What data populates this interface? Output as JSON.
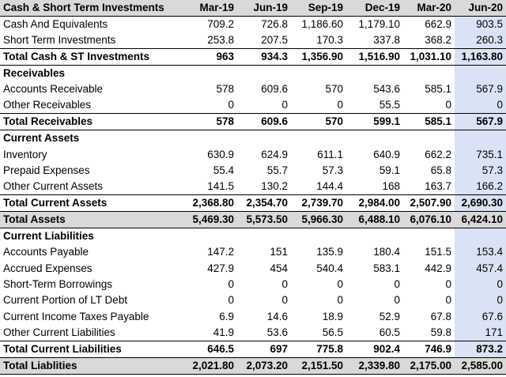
{
  "columns": [
    "Cash & Short Term Investments",
    "Mar-19",
    "Jun-19",
    "Sep-19",
    "Dec-19",
    "Mar-20",
    "Jun-20"
  ],
  "rows": [
    {
      "type": "data",
      "label": "Cash And Equivalents",
      "values": [
        "709.2",
        "726.8",
        "1,186.60",
        "1,179.10",
        "662.9",
        "903.5"
      ]
    },
    {
      "type": "data",
      "label": "Short Term Investments",
      "values": [
        "253.8",
        "207.5",
        "170.3",
        "337.8",
        "368.2",
        "260.3"
      ]
    },
    {
      "type": "total",
      "label": "Total Cash & ST Investments",
      "values": [
        "963",
        "934.3",
        "1,356.90",
        "1,516.90",
        "1,031.10",
        "1,163.80"
      ]
    },
    {
      "type": "section",
      "label": "Receivables",
      "values": [
        "",
        "",
        "",
        "",
        "",
        ""
      ]
    },
    {
      "type": "data",
      "label": "Accounts Receivable",
      "values": [
        "578",
        "609.6",
        "570",
        "543.6",
        "585.1",
        "567.9"
      ]
    },
    {
      "type": "data",
      "label": "Other Receivables",
      "values": [
        "0",
        "0",
        "0",
        "55.5",
        "0",
        "0"
      ]
    },
    {
      "type": "total",
      "label": "Total Receivables",
      "values": [
        "578",
        "609.6",
        "570",
        "599.1",
        "585.1",
        "567.9"
      ]
    },
    {
      "type": "section",
      "label": "Current Assets",
      "values": [
        "",
        "",
        "",
        "",
        "",
        ""
      ]
    },
    {
      "type": "data",
      "label": "Inventory",
      "values": [
        "630.9",
        "624.9",
        "611.1",
        "640.9",
        "662.2",
        "735.1"
      ]
    },
    {
      "type": "data",
      "label": "Prepaid Expenses",
      "values": [
        "55.4",
        "55.7",
        "57.3",
        "59.1",
        "65.8",
        "57.3"
      ]
    },
    {
      "type": "data",
      "label": "Other Current Assets",
      "values": [
        "141.5",
        "130.2",
        "144.4",
        "168",
        "163.7",
        "166.2"
      ]
    },
    {
      "type": "total",
      "label": "Total Current Assets",
      "values": [
        "2,368.80",
        "2,354.70",
        "2,739.70",
        "2,984.00",
        "2,507.90",
        "2,690.30"
      ]
    },
    {
      "type": "grand",
      "label": "Total Assets",
      "values": [
        "5,469.30",
        "5,573.50",
        "5,966.30",
        "6,488.10",
        "6,076.10",
        "6,424.10"
      ]
    },
    {
      "type": "section",
      "label": "Current Liabilities",
      "values": [
        "",
        "",
        "",
        "",
        "",
        ""
      ]
    },
    {
      "type": "data",
      "label": "Accounts Payable",
      "values": [
        "147.2",
        "151",
        "135.9",
        "180.4",
        "151.5",
        "153.4"
      ]
    },
    {
      "type": "data",
      "label": "Accrued Expenses",
      "values": [
        "427.9",
        "454",
        "540.4",
        "583.1",
        "442.9",
        "457.4"
      ]
    },
    {
      "type": "data",
      "label": "Short-Term Borrowings",
      "values": [
        "0",
        "0",
        "0",
        "0",
        "0",
        "0"
      ]
    },
    {
      "type": "data",
      "label": "Current Portion of LT Debt",
      "values": [
        "0",
        "0",
        "0",
        "0",
        "0",
        "0"
      ]
    },
    {
      "type": "data",
      "label": "Current Income Taxes Payable",
      "values": [
        "6.9",
        "14.6",
        "18.9",
        "52.9",
        "67.8",
        "67.6"
      ]
    },
    {
      "type": "data",
      "label": "Other Current Liabilities",
      "values": [
        "41.9",
        "53.6",
        "56.5",
        "60.5",
        "59.8",
        "171"
      ]
    },
    {
      "type": "total",
      "label": "Total Current Liabilities",
      "values": [
        "646.5",
        "697",
        "775.8",
        "902.4",
        "746.9",
        "873.2"
      ]
    },
    {
      "type": "grand",
      "label": "Total Liablities",
      "values": [
        "2,021.80",
        "2,073.20",
        "2,151.50",
        "2,339.80",
        "2,175.00",
        "2,585.00"
      ]
    }
  ],
  "colors": {
    "header_bg": "#d9d9d9",
    "highlight_col": "#dae3f3"
  }
}
